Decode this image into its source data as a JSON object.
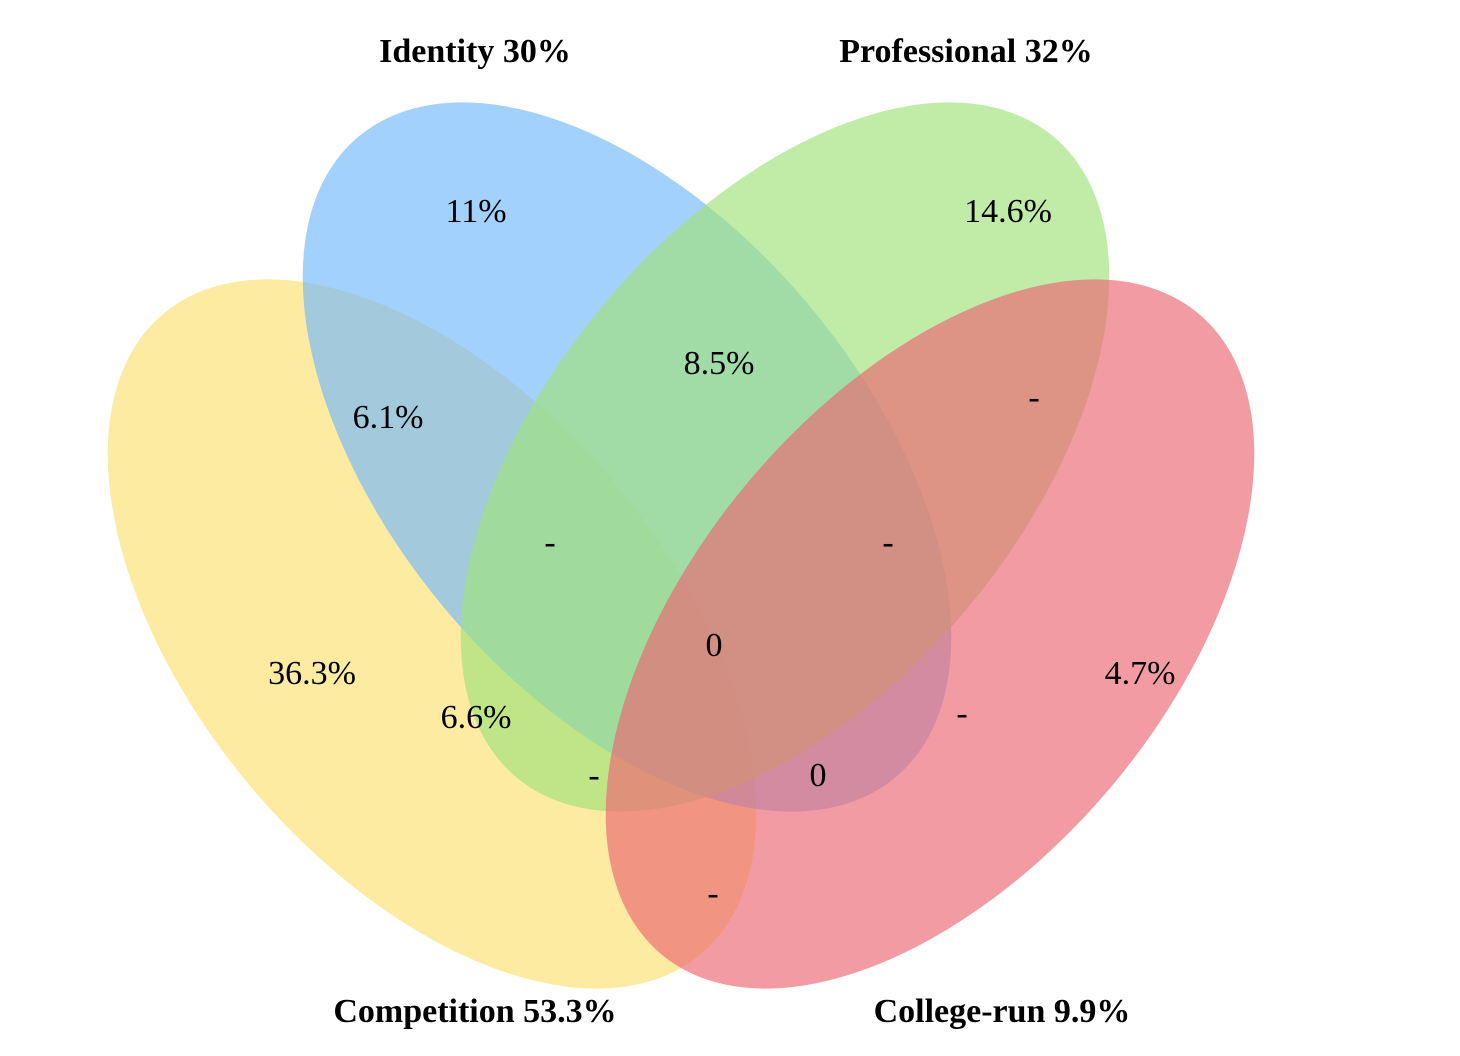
{
  "sets": [
    {
      "id": "competition",
      "label": "Competition 53.3%",
      "color": "#FAE16E"
    },
    {
      "id": "identity",
      "label": "Identity 30%",
      "color": "#72B8FC"
    },
    {
      "id": "professional",
      "label": "Professional 32%",
      "color": "#A0E27A"
    },
    {
      "id": "college",
      "label": "College-run 9.9%",
      "color": "#EC6671"
    }
  ],
  "regions": [
    {
      "id": "identity-only",
      "sets": [
        "identity"
      ],
      "label": "11%"
    },
    {
      "id": "professional-only",
      "sets": [
        "professional"
      ],
      "label": "14.6%"
    },
    {
      "id": "competition-only",
      "sets": [
        "competition"
      ],
      "label": "36.3%"
    },
    {
      "id": "college-only",
      "sets": [
        "college"
      ],
      "label": "4.7%"
    },
    {
      "id": "identity-professional",
      "sets": [
        "identity",
        "professional"
      ],
      "label": "8.5%"
    },
    {
      "id": "competition-identity",
      "sets": [
        "competition",
        "identity"
      ],
      "label": "6.1%"
    },
    {
      "id": "professional-college",
      "sets": [
        "professional",
        "college"
      ],
      "label": "-"
    },
    {
      "id": "competition-identity-professional",
      "sets": [
        "competition",
        "identity",
        "professional"
      ],
      "label": "-"
    },
    {
      "id": "identity-professional-college",
      "sets": [
        "identity",
        "professional",
        "college"
      ],
      "label": "-"
    },
    {
      "id": "all-four",
      "sets": [
        "competition",
        "identity",
        "professional",
        "college"
      ],
      "label": "0"
    },
    {
      "id": "competition-professional",
      "sets": [
        "competition",
        "professional"
      ],
      "label": "6.6%"
    },
    {
      "id": "identity-college",
      "sets": [
        "identity",
        "college"
      ],
      "label": "-"
    },
    {
      "id": "competition-professional-college",
      "sets": [
        "competition",
        "professional",
        "college"
      ],
      "label": "-"
    },
    {
      "id": "competition-identity-college",
      "sets": [
        "competition",
        "identity",
        "college"
      ],
      "label": "0"
    },
    {
      "id": "competition-college",
      "sets": [
        "competition",
        "college"
      ],
      "label": "-"
    }
  ]
}
